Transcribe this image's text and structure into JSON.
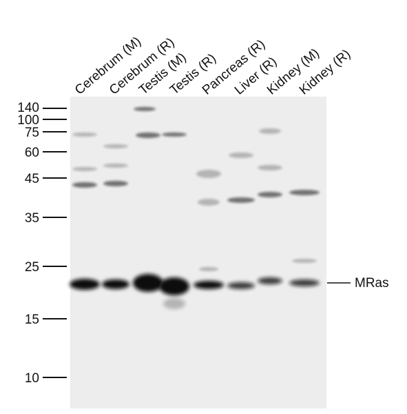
{
  "lanes": [
    "Cerebrum (M)",
    "Cerebrum (R)",
    "Testis (M)",
    "Testis (R)",
    "Pancreas (R)",
    "Liver (R)",
    "Kidney (M)",
    "Kidney (R)"
  ],
  "markers": [
    140,
    100,
    75,
    60,
    45,
    35,
    25,
    15,
    10
  ],
  "band_label": "MRas"
}
